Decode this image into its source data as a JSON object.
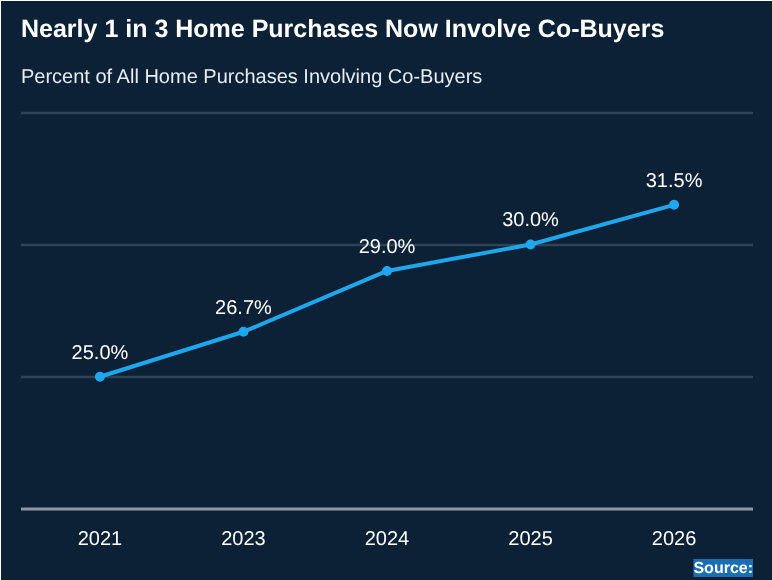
{
  "chart_data": {
    "type": "line",
    "title": "Nearly 1 in 3 Home Purchases Now Involve Co-Buyers",
    "subtitle": "Percent of All Home Purchases Involving Co-Buyers",
    "categories": [
      "2021",
      "2023",
      "2024",
      "2025",
      "2026"
    ],
    "series": [
      {
        "color": "#1ea7ec",
        "values": [
          25.0,
          26.7,
          29.0,
          30.0,
          31.5
        ],
        "value_labels": [
          "25.0%",
          "26.7%",
          "29.0%",
          "30.0%",
          "31.5%"
        ]
      }
    ],
    "ylim": [
      20,
      35.5
    ],
    "yticks": [
      {
        "value": 20,
        "label": null
      },
      {
        "value": 25,
        "label": null
      },
      {
        "value": 30,
        "label": null
      },
      {
        "value": 35,
        "label": null
      }
    ],
    "tick_labels": "x",
    "grid": "y",
    "marker": "circle",
    "line_style": "solid",
    "annotations": [
      "Source:"
    ]
  }
}
